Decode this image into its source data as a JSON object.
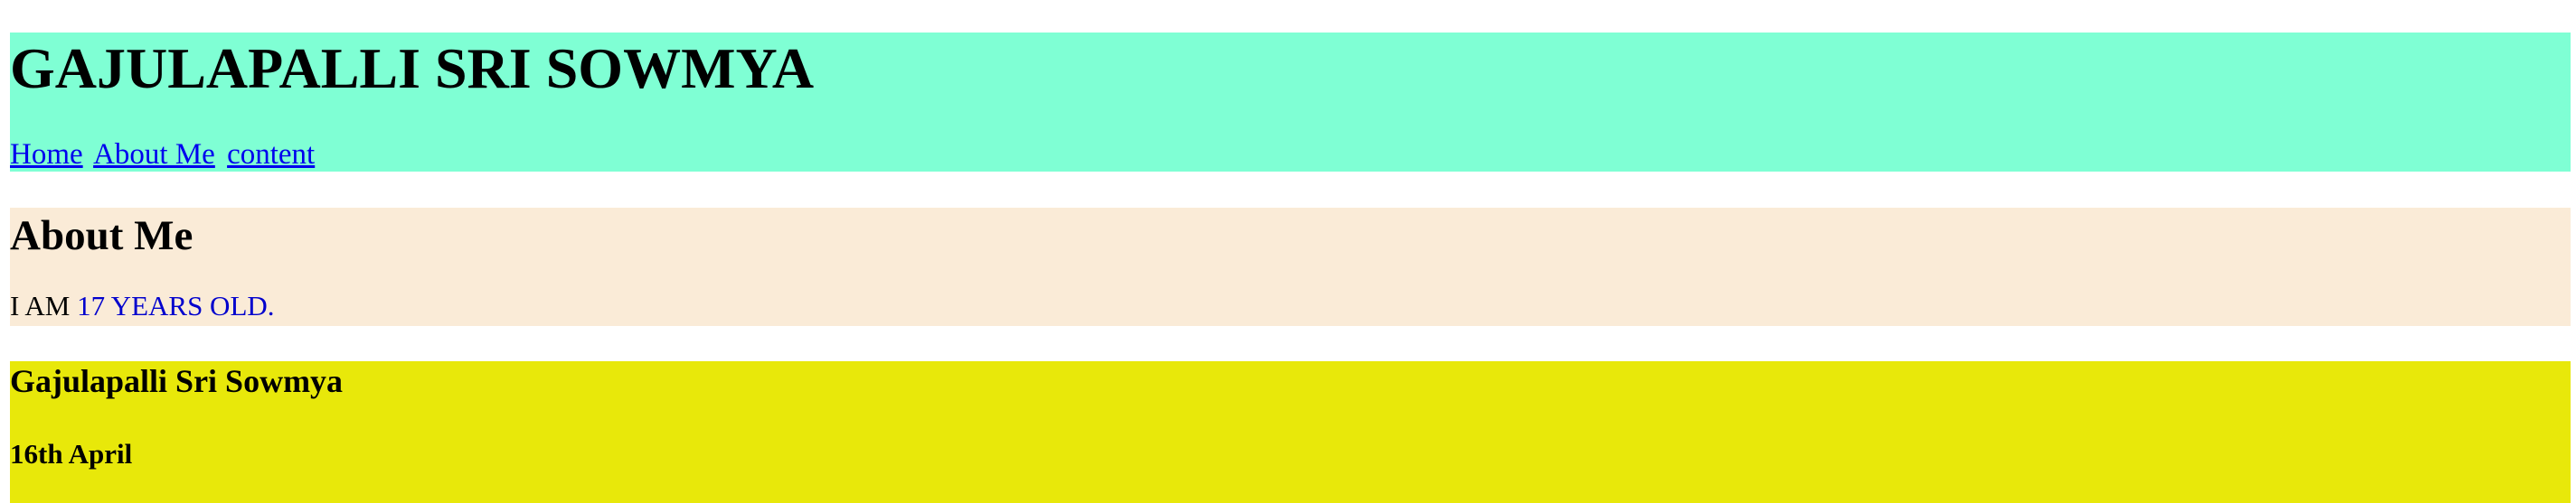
{
  "header": {
    "title": "GAJULAPALLI SRI SOWMYA",
    "background_color": "#7fffd4",
    "nav": [
      {
        "label": "Home"
      },
      {
        "label": "About Me"
      },
      {
        "label": "content"
      }
    ]
  },
  "about": {
    "heading": "About Me",
    "text_prefix": "I AM ",
    "text_highlight": "17 YEARS OLD.",
    "background_color": "#faebd7",
    "highlight_color": "#0000cd"
  },
  "profile": {
    "name": "Gajulapalli Sri Sowmya",
    "date": "16th April",
    "background_color": "#e8e80a"
  }
}
